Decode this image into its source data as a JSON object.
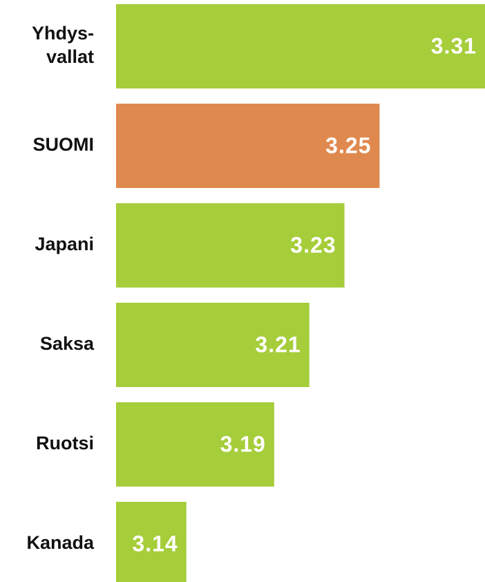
{
  "chart_data": {
    "type": "bar",
    "orientation": "horizontal",
    "categories": [
      "Yhdys-vallat",
      "SUOMI",
      "Japani",
      "Saksa",
      "Ruotsi",
      "Kanada"
    ],
    "values": [
      3.31,
      3.25,
      3.23,
      3.21,
      3.19,
      3.14
    ],
    "colors": [
      "#a6cd3a",
      "#e0894f",
      "#a6cd3a",
      "#a6cd3a",
      "#a6cd3a",
      "#a6cd3a"
    ],
    "xlim": [
      3.1,
      3.31
    ]
  }
}
